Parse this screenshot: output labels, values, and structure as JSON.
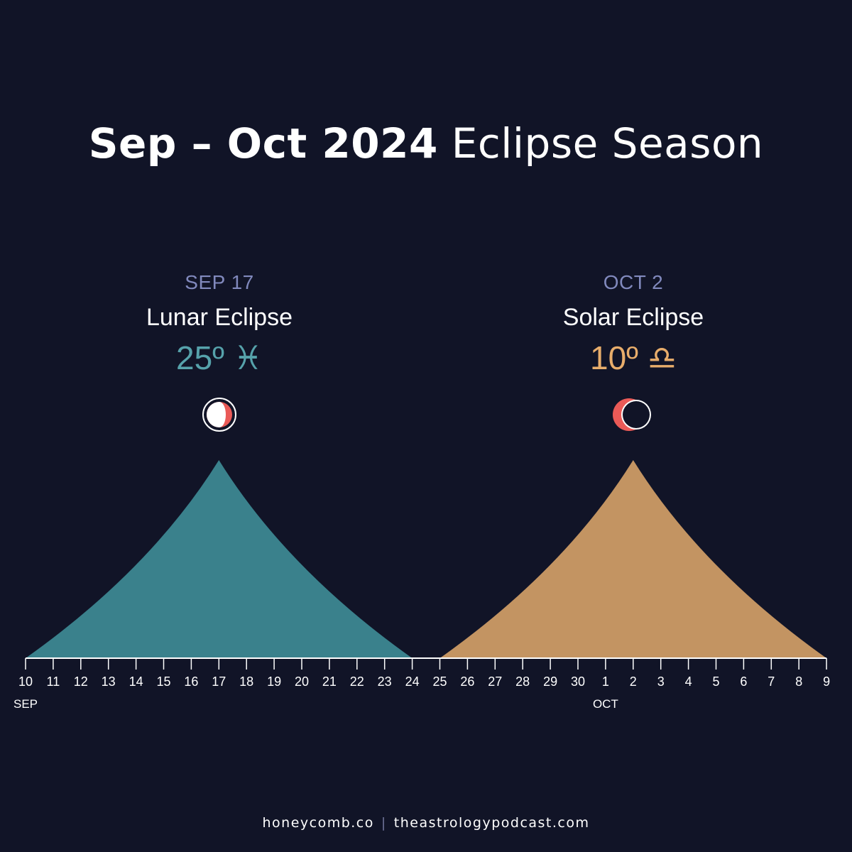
{
  "title": {
    "bold": "Sep – Oct 2024",
    "light": "Eclipse Season"
  },
  "events": [
    {
      "date": "SEP 17",
      "name": "Lunar Eclipse",
      "degree": "25º",
      "sign": "♓",
      "color": "#56a2ab",
      "icon": "lunar-eclipse-icon"
    },
    {
      "date": "OCT 2",
      "name": "Solar Eclipse",
      "degree": "10º",
      "sign": "♎",
      "color": "#e8ad6b",
      "icon": "solar-eclipse-icon"
    }
  ],
  "footer": {
    "left": "honeycomb.co",
    "divider": "|",
    "right": "theastrologypodcast.com"
  },
  "colors": {
    "background": "#111427",
    "lunar_fill": "#3a818c",
    "solar_fill": "#c39462",
    "eclipse_red": "#ea5a57"
  },
  "chart_data": {
    "type": "area",
    "x": [
      "10",
      "11",
      "12",
      "13",
      "14",
      "15",
      "16",
      "17",
      "18",
      "19",
      "20",
      "21",
      "22",
      "23",
      "24",
      "25",
      "26",
      "27",
      "28",
      "29",
      "30",
      "1",
      "2",
      "3",
      "4",
      "5",
      "6",
      "7",
      "8",
      "9"
    ],
    "month_labels": [
      {
        "at": "10",
        "label": "SEP"
      },
      {
        "at": "1",
        "label": "OCT"
      }
    ],
    "series": [
      {
        "start": "10",
        "peak": "17",
        "end": "24",
        "color": "#3a818c"
      },
      {
        "start": "25",
        "peak": "2",
        "end": "9",
        "color": "#c39462"
      }
    ]
  }
}
